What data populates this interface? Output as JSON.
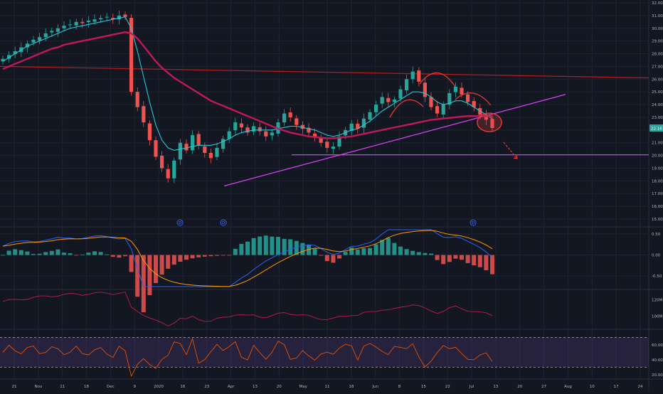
{
  "colors": {
    "background": "#131722",
    "grid": "#1f2430",
    "separator": "#2a2e39",
    "axis_text": "#b2b5be",
    "candle_up": "#26a69a",
    "candle_down": "#ef5350",
    "ma_fast": "#26c6da",
    "ma_slow": "#c2185b",
    "trend_pink": "#e040fb",
    "trend_red": "#b71c1c",
    "annotation_red": "#e53935",
    "macd_pos": "#26a69a",
    "macd_neg": "#ef5350",
    "macd_line": "#2962ff",
    "signal_line": "#ff9800",
    "obv_line": "#c2185b",
    "rsi_line": "#e65100",
    "rsi_band": "#7e57c2"
  },
  "chart_data": [
    {
      "panel": "price",
      "type": "candlestick",
      "y_ticks": [
        "32.00",
        "31.00",
        "30.00",
        "29.00",
        "28.00",
        "27.00",
        "26.00",
        "25.00",
        "24.00",
        "23.00",
        "22.00",
        "21.00",
        "20.00",
        "19.00",
        "18.00",
        "17.00",
        "16.00",
        "15.00"
      ],
      "ylim": [
        15,
        32
      ],
      "x_ticks": [
        "21",
        "Nov",
        "11",
        "18",
        "Dec",
        "9",
        "2020",
        "16",
        "23",
        "Apr",
        "13",
        "20",
        "May",
        "11",
        "18",
        "Jun",
        "8",
        "15",
        "22",
        "Jul",
        "13",
        "20",
        "27",
        "Aug",
        "10",
        "17",
        "24"
      ],
      "last_price_label": "22.16",
      "last_price": 22.16,
      "event_markers": [
        "D",
        "D",
        "D"
      ],
      "series": [
        {
          "name": "close",
          "values": [
            27.6,
            27.9,
            28.2,
            28.5,
            28.8,
            29.1,
            29.3,
            29.6,
            29.8,
            30.0,
            30.2,
            30.3,
            30.5,
            30.4,
            30.6,
            30.7,
            30.8,
            30.9,
            30.7,
            31.0,
            30.9,
            25.0,
            23.8,
            22.6,
            21.2,
            19.9,
            19.0,
            18.2,
            19.6,
            21.0,
            20.4,
            21.6,
            20.8,
            20.2,
            19.8,
            20.6,
            21.3,
            21.9,
            22.6,
            22.2,
            21.8,
            22.3,
            21.9,
            21.5,
            21.8,
            22.6,
            23.3,
            23.0,
            22.4,
            22.1,
            21.8,
            21.4,
            21.0,
            20.6,
            20.7,
            21.5,
            22.0,
            22.5,
            22.1,
            22.9,
            23.4,
            24.0,
            24.6,
            24.2,
            24.4,
            25.2,
            26.0,
            26.6,
            25.8,
            24.6,
            23.8,
            23.3,
            24.0,
            24.9,
            25.4,
            24.8,
            24.2,
            23.8,
            23.2,
            22.8,
            22.16
          ]
        },
        {
          "name": "ma_fast",
          "values": [
            27.4,
            27.7,
            28.0,
            28.3,
            28.6,
            28.8,
            29.0,
            29.2,
            29.4,
            29.6,
            29.8,
            30.0,
            30.1,
            30.2,
            30.3,
            30.4,
            30.5,
            30.6,
            30.7,
            30.8,
            30.9,
            30.0,
            28.2,
            26.2,
            24.2,
            22.4,
            21.2,
            20.6,
            20.4,
            20.5,
            20.6,
            20.7,
            20.8,
            20.8,
            20.8,
            20.9,
            21.1,
            21.3,
            21.6,
            21.8,
            21.9,
            22.0,
            22.0,
            22.0,
            22.0,
            22.1,
            22.2,
            22.3,
            22.3,
            22.2,
            22.1,
            22.0,
            21.8,
            21.6,
            21.5,
            21.6,
            21.8,
            22.0,
            22.1,
            22.4,
            22.7,
            23.1,
            23.5,
            23.8,
            24.1,
            24.4,
            24.7,
            25.0,
            25.0,
            24.9,
            24.6,
            24.2,
            24.0,
            24.1,
            24.3,
            24.3,
            24.1,
            23.8,
            23.5,
            23.2,
            22.9
          ]
        },
        {
          "name": "ma_slow",
          "values": [
            26.8,
            27.0,
            27.2,
            27.4,
            27.6,
            27.8,
            28.0,
            28.2,
            28.4,
            28.5,
            28.7,
            28.8,
            28.9,
            29.0,
            29.1,
            29.2,
            29.3,
            29.4,
            29.5,
            29.6,
            29.7,
            29.6,
            29.2,
            28.6,
            28.0,
            27.4,
            26.9,
            26.5,
            26.1,
            25.8,
            25.5,
            25.2,
            24.9,
            24.6,
            24.3,
            24.1,
            23.9,
            23.7,
            23.5,
            23.3,
            23.1,
            22.9,
            22.7,
            22.5,
            22.3,
            22.1,
            21.95,
            21.8,
            21.7,
            21.6,
            21.5,
            21.45,
            21.4,
            21.35,
            21.35,
            21.4,
            21.45,
            21.5,
            21.6,
            21.7,
            21.8,
            21.9,
            22.0,
            22.1,
            22.2,
            22.3,
            22.4,
            22.5,
            22.6,
            22.7,
            22.8,
            22.85,
            22.9,
            22.95,
            23.0,
            23.05,
            23.1,
            23.1,
            23.1,
            23.1,
            23.1
          ]
        }
      ]
    },
    {
      "panel": "macd",
      "type": "histogram+line",
      "y_ticks": [
        "0.50",
        "0.00",
        "-0.50"
      ],
      "ylim": [
        -0.8,
        0.65
      ]
    },
    {
      "panel": "obv",
      "type": "line",
      "y_ticks": [
        "120M",
        "100M"
      ]
    },
    {
      "panel": "rsi",
      "type": "line",
      "y_ticks": [
        "60.00",
        "40.00",
        "20.00"
      ],
      "ylim": [
        15,
        80
      ],
      "bands": [
        30,
        70
      ]
    }
  ]
}
